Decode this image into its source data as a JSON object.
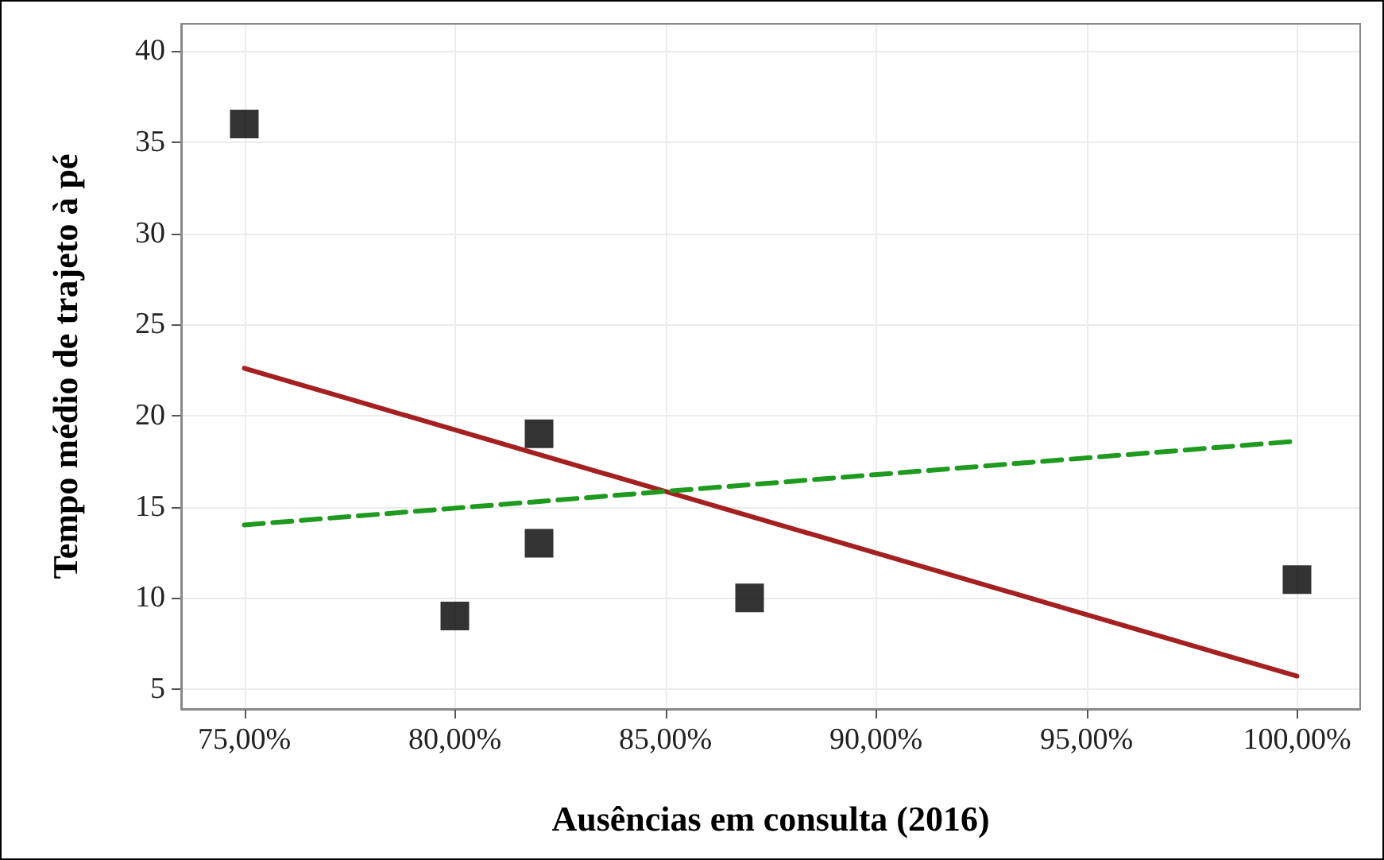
{
  "chart_data": {
    "type": "scatter",
    "xlabel": "Ausências em consulta (2016)",
    "ylabel": "Tempo médio de trajeto à pé",
    "xlim": [
      73.5,
      101.5
    ],
    "ylim": [
      3.9,
      41.5
    ],
    "xticks": [
      {
        "value": 75,
        "label": "75,00%"
      },
      {
        "value": 80,
        "label": "80,00%"
      },
      {
        "value": 85,
        "label": "85,00%"
      },
      {
        "value": 90,
        "label": "90,00%"
      },
      {
        "value": 95,
        "label": "95,00%"
      },
      {
        "value": 100,
        "label": "100,00%"
      }
    ],
    "yticks": [
      5,
      10,
      15,
      20,
      25,
      30,
      35,
      40
    ],
    "grid": true,
    "series": [
      {
        "color": "#000000",
        "marker": "square",
        "x": [
          75,
          80,
          82,
          82,
          87,
          100
        ],
        "values": [
          36,
          9,
          19,
          13,
          10,
          11
        ]
      },
      {
        "type": "line",
        "color": "#a52020",
        "marker": "none",
        "line_style": "solid",
        "x": [
          75,
          100
        ],
        "values": [
          22.6,
          5.7
        ]
      },
      {
        "type": "line",
        "color": "#1e9a1e",
        "marker": "none",
        "line_style": "dashed",
        "x": [
          75,
          100
        ],
        "values": [
          14,
          18.6
        ]
      }
    ]
  }
}
